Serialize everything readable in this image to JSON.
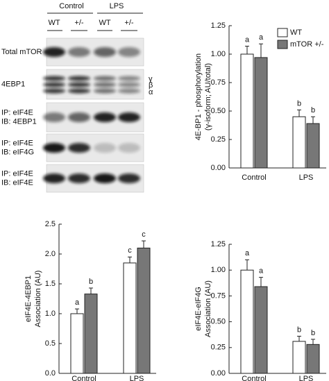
{
  "blot": {
    "groups": [
      "Control",
      "LPS"
    ],
    "lanes": [
      "WT",
      "+/-",
      "WT",
      "+/-"
    ],
    "rows": [
      [
        "Total mTOR"
      ],
      [
        "4EBP1"
      ],
      [
        "IP: eIF4E",
        "IB: 4EBP1"
      ],
      [
        "IP: eIF4E",
        "IB: eIF4G"
      ],
      [
        "IP: eIF4E",
        "IB: eIF4E"
      ]
    ],
    "isoforms": [
      "γ",
      "β",
      "α"
    ]
  },
  "chart_data": [
    {
      "type": "bar",
      "ylabel": [
        "4E-BP1 - phosphorylation",
        "(γ-isoform; AU/total)"
      ],
      "categories": [
        "Control",
        "LPS"
      ],
      "series": [
        {
          "name": "WT",
          "color": "#ffffff",
          "values": [
            1.0,
            0.45
          ],
          "errors": [
            0.07,
            0.06
          ],
          "letters": [
            "a",
            "b"
          ]
        },
        {
          "name": "mTOR +/-",
          "color": "#777777",
          "values": [
            0.97,
            0.39
          ],
          "errors": [
            0.12,
            0.06
          ],
          "letters": [
            "a",
            "b"
          ]
        }
      ],
      "ylim": [
        0,
        1.25
      ],
      "yticks": [
        {
          "value": 0,
          "label": "0.00"
        },
        {
          "value": 0.25,
          "label": "0.25"
        },
        {
          "value": 0.5,
          "label": "0.50"
        },
        {
          "value": 0.75,
          "label": "0.75"
        },
        {
          "value": 1,
          "label": "1.00"
        },
        {
          "value": 1.25,
          "label": "1.25"
        }
      ],
      "legend": "upper right"
    },
    {
      "type": "bar",
      "ylabel": [
        "eIF4E-4EBP1",
        "Association (AU)"
      ],
      "categories": [
        "Control",
        "LPS"
      ],
      "series": [
        {
          "name": "WT",
          "color": "#ffffff",
          "values": [
            1.0,
            1.85
          ],
          "errors": [
            0.08,
            0.1
          ],
          "letters": [
            "a",
            "c"
          ]
        },
        {
          "name": "mTOR +/-",
          "color": "#777777",
          "values": [
            1.33,
            2.1
          ],
          "errors": [
            0.1,
            0.12
          ],
          "letters": [
            "b",
            "c"
          ]
        }
      ],
      "ylim": [
        0,
        2.5
      ],
      "yticks": [
        {
          "value": 0,
          "label": "0.0"
        },
        {
          "value": 0.5,
          "label": "0.5"
        },
        {
          "value": 1,
          "label": "1.0"
        },
        {
          "value": 1.5,
          "label": "1.5"
        },
        {
          "value": 2,
          "label": "2.0"
        },
        {
          "value": 2.5,
          "label": "2.5"
        }
      ]
    },
    {
      "type": "bar",
      "ylabel": [
        "eIF4E-eIF4G",
        "Association (AU)"
      ],
      "categories": [
        "Control",
        "LPS"
      ],
      "series": [
        {
          "name": "WT",
          "color": "#ffffff",
          "values": [
            1.0,
            0.31
          ],
          "errors": [
            0.1,
            0.05
          ],
          "letters": [
            "a",
            "b"
          ]
        },
        {
          "name": "mTOR +/-",
          "color": "#777777",
          "values": [
            0.84,
            0.28
          ],
          "errors": [
            0.09,
            0.05
          ],
          "letters": [
            "a",
            "b"
          ]
        }
      ],
      "ylim": [
        0,
        1.25
      ],
      "yticks": [
        {
          "value": 0,
          "label": "0.00"
        },
        {
          "value": 0.25,
          "label": "0.25"
        },
        {
          "value": 0.5,
          "label": "0.50"
        },
        {
          "value": 0.75,
          "label": "0.75"
        },
        {
          "value": 1,
          "label": "1.00"
        },
        {
          "value": 1.25,
          "label": "1.25"
        }
      ]
    }
  ]
}
